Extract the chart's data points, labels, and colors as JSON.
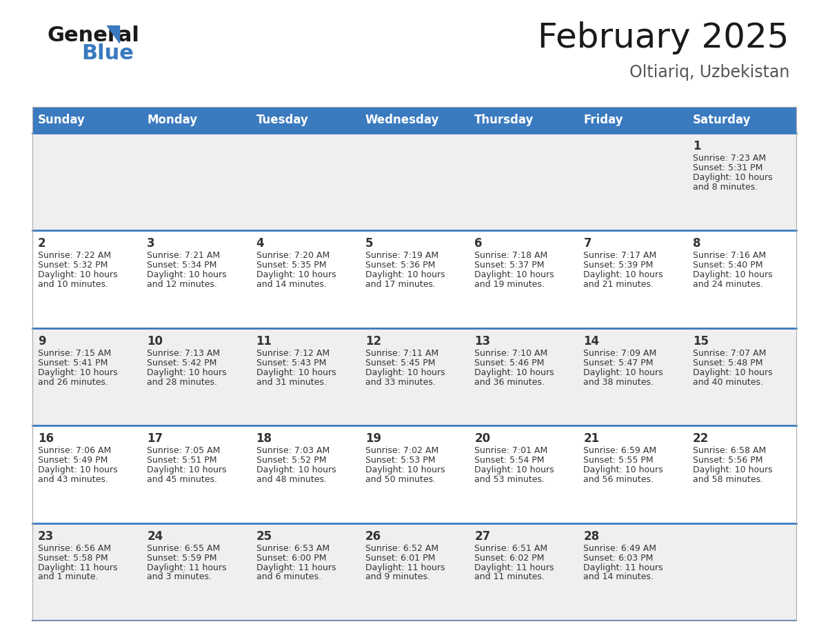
{
  "title": "February 2025",
  "subtitle": "Oltiariq, Uzbekistan",
  "header_color": "#3a7abf",
  "header_text_color": "#ffffff",
  "days_of_week": [
    "Sunday",
    "Monday",
    "Tuesday",
    "Wednesday",
    "Thursday",
    "Friday",
    "Saturday"
  ],
  "row_bg_colors": [
    "#efefef",
    "#ffffff",
    "#efefef",
    "#ffffff",
    "#efefef"
  ],
  "divider_color": "#3a7abf",
  "text_color": "#333333",
  "day_num_color": "#333333",
  "calendar": [
    [
      null,
      null,
      null,
      null,
      null,
      null,
      {
        "day": "1",
        "sunrise": "7:23 AM",
        "sunset": "5:31 PM",
        "daylight_line1": "Daylight: 10 hours",
        "daylight_line2": "and 8 minutes."
      }
    ],
    [
      {
        "day": "2",
        "sunrise": "7:22 AM",
        "sunset": "5:32 PM",
        "daylight_line1": "Daylight: 10 hours",
        "daylight_line2": "and 10 minutes."
      },
      {
        "day": "3",
        "sunrise": "7:21 AM",
        "sunset": "5:34 PM",
        "daylight_line1": "Daylight: 10 hours",
        "daylight_line2": "and 12 minutes."
      },
      {
        "day": "4",
        "sunrise": "7:20 AM",
        "sunset": "5:35 PM",
        "daylight_line1": "Daylight: 10 hours",
        "daylight_line2": "and 14 minutes."
      },
      {
        "day": "5",
        "sunrise": "7:19 AM",
        "sunset": "5:36 PM",
        "daylight_line1": "Daylight: 10 hours",
        "daylight_line2": "and 17 minutes."
      },
      {
        "day": "6",
        "sunrise": "7:18 AM",
        "sunset": "5:37 PM",
        "daylight_line1": "Daylight: 10 hours",
        "daylight_line2": "and 19 minutes."
      },
      {
        "day": "7",
        "sunrise": "7:17 AM",
        "sunset": "5:39 PM",
        "daylight_line1": "Daylight: 10 hours",
        "daylight_line2": "and 21 minutes."
      },
      {
        "day": "8",
        "sunrise": "7:16 AM",
        "sunset": "5:40 PM",
        "daylight_line1": "Daylight: 10 hours",
        "daylight_line2": "and 24 minutes."
      }
    ],
    [
      {
        "day": "9",
        "sunrise": "7:15 AM",
        "sunset": "5:41 PM",
        "daylight_line1": "Daylight: 10 hours",
        "daylight_line2": "and 26 minutes."
      },
      {
        "day": "10",
        "sunrise": "7:13 AM",
        "sunset": "5:42 PM",
        "daylight_line1": "Daylight: 10 hours",
        "daylight_line2": "and 28 minutes."
      },
      {
        "day": "11",
        "sunrise": "7:12 AM",
        "sunset": "5:43 PM",
        "daylight_line1": "Daylight: 10 hours",
        "daylight_line2": "and 31 minutes."
      },
      {
        "day": "12",
        "sunrise": "7:11 AM",
        "sunset": "5:45 PM",
        "daylight_line1": "Daylight: 10 hours",
        "daylight_line2": "and 33 minutes."
      },
      {
        "day": "13",
        "sunrise": "7:10 AM",
        "sunset": "5:46 PM",
        "daylight_line1": "Daylight: 10 hours",
        "daylight_line2": "and 36 minutes."
      },
      {
        "day": "14",
        "sunrise": "7:09 AM",
        "sunset": "5:47 PM",
        "daylight_line1": "Daylight: 10 hours",
        "daylight_line2": "and 38 minutes."
      },
      {
        "day": "15",
        "sunrise": "7:07 AM",
        "sunset": "5:48 PM",
        "daylight_line1": "Daylight: 10 hours",
        "daylight_line2": "and 40 minutes."
      }
    ],
    [
      {
        "day": "16",
        "sunrise": "7:06 AM",
        "sunset": "5:49 PM",
        "daylight_line1": "Daylight: 10 hours",
        "daylight_line2": "and 43 minutes."
      },
      {
        "day": "17",
        "sunrise": "7:05 AM",
        "sunset": "5:51 PM",
        "daylight_line1": "Daylight: 10 hours",
        "daylight_line2": "and 45 minutes."
      },
      {
        "day": "18",
        "sunrise": "7:03 AM",
        "sunset": "5:52 PM",
        "daylight_line1": "Daylight: 10 hours",
        "daylight_line2": "and 48 minutes."
      },
      {
        "day": "19",
        "sunrise": "7:02 AM",
        "sunset": "5:53 PM",
        "daylight_line1": "Daylight: 10 hours",
        "daylight_line2": "and 50 minutes."
      },
      {
        "day": "20",
        "sunrise": "7:01 AM",
        "sunset": "5:54 PM",
        "daylight_line1": "Daylight: 10 hours",
        "daylight_line2": "and 53 minutes."
      },
      {
        "day": "21",
        "sunrise": "6:59 AM",
        "sunset": "5:55 PM",
        "daylight_line1": "Daylight: 10 hours",
        "daylight_line2": "and 56 minutes."
      },
      {
        "day": "22",
        "sunrise": "6:58 AM",
        "sunset": "5:56 PM",
        "daylight_line1": "Daylight: 10 hours",
        "daylight_line2": "and 58 minutes."
      }
    ],
    [
      {
        "day": "23",
        "sunrise": "6:56 AM",
        "sunset": "5:58 PM",
        "daylight_line1": "Daylight: 11 hours",
        "daylight_line2": "and 1 minute."
      },
      {
        "day": "24",
        "sunrise": "6:55 AM",
        "sunset": "5:59 PM",
        "daylight_line1": "Daylight: 11 hours",
        "daylight_line2": "and 3 minutes."
      },
      {
        "day": "25",
        "sunrise": "6:53 AM",
        "sunset": "6:00 PM",
        "daylight_line1": "Daylight: 11 hours",
        "daylight_line2": "and 6 minutes."
      },
      {
        "day": "26",
        "sunrise": "6:52 AM",
        "sunset": "6:01 PM",
        "daylight_line1": "Daylight: 11 hours",
        "daylight_line2": "and 9 minutes."
      },
      {
        "day": "27",
        "sunrise": "6:51 AM",
        "sunset": "6:02 PM",
        "daylight_line1": "Daylight: 11 hours",
        "daylight_line2": "and 11 minutes."
      },
      {
        "day": "28",
        "sunrise": "6:49 AM",
        "sunset": "6:03 PM",
        "daylight_line1": "Daylight: 11 hours",
        "daylight_line2": "and 14 minutes."
      },
      null
    ]
  ],
  "logo_color_general": "#1a1a1a",
  "logo_color_blue": "#3a7abf",
  "title_fontsize": 36,
  "subtitle_fontsize": 17,
  "header_fontsize": 12,
  "day_num_fontsize": 12,
  "cell_text_fontsize": 9
}
